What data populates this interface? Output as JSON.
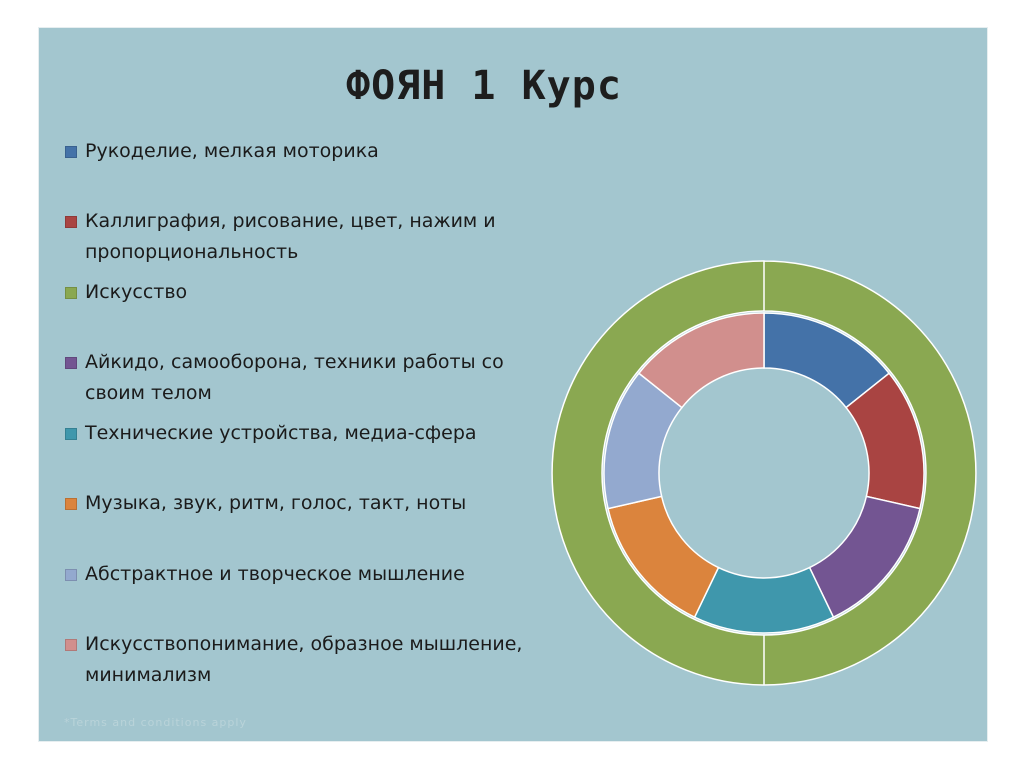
{
  "slide": {
    "title": "ФОЯН 1 Курс",
    "footnote": "*Terms and conditions apply"
  },
  "chart_data": {
    "type": "pie",
    "subtype": "doughnut",
    "title": "ФОЯН 1 Курс",
    "legend_position": "left",
    "categories": [
      "Рукоделие, мелкая моторика",
      "Каллиграфия, рисование, цвет, нажим и пропорциональность",
      "Искусство",
      "Айкидо, самооборона, техники работы со своим телом",
      "Технические устройства, медиа-сфера",
      "Музыка, звук, ритм, голос, такт, ноты",
      "Абстрактное и творческое мышление",
      "Искусствопонимание, образное мышление, минимализм"
    ],
    "colors": [
      "#4472a8",
      "#a94442",
      "#8aa851",
      "#735592",
      "#3f97ac",
      "#db843d",
      "#93a9cf",
      "#d18f8d"
    ],
    "series": [
      {
        "ring": "inner",
        "values": [
          1,
          1,
          0,
          1,
          1,
          1,
          1,
          1
        ]
      },
      {
        "ring": "outer",
        "values": [
          0,
          0,
          1,
          0,
          0,
          0,
          0,
          0
        ]
      }
    ]
  }
}
